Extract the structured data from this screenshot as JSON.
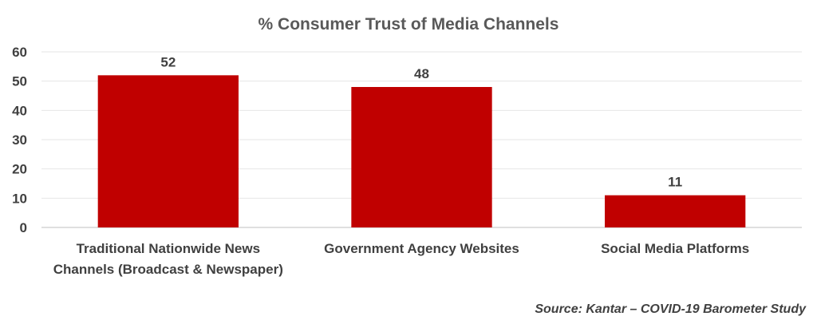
{
  "chart_data": {
    "type": "bar",
    "title": "% Consumer Trust of Media Channels",
    "categories": [
      [
        "Traditional Nationwide News",
        "Channels (Broadcast & Newspaper)"
      ],
      [
        "Government Agency Websites"
      ],
      [
        "Social Media Platforms"
      ]
    ],
    "values": [
      52,
      48,
      11
    ],
    "data_labels": [
      "52",
      "48",
      "11"
    ],
    "ylim": [
      0,
      60
    ],
    "yticks": [
      0,
      10,
      20,
      30,
      40,
      50,
      60
    ],
    "grid": true,
    "legend": "none",
    "bar_color": "#C00000",
    "source": "Source: Kantar – COVID-19 Barometer Study"
  }
}
